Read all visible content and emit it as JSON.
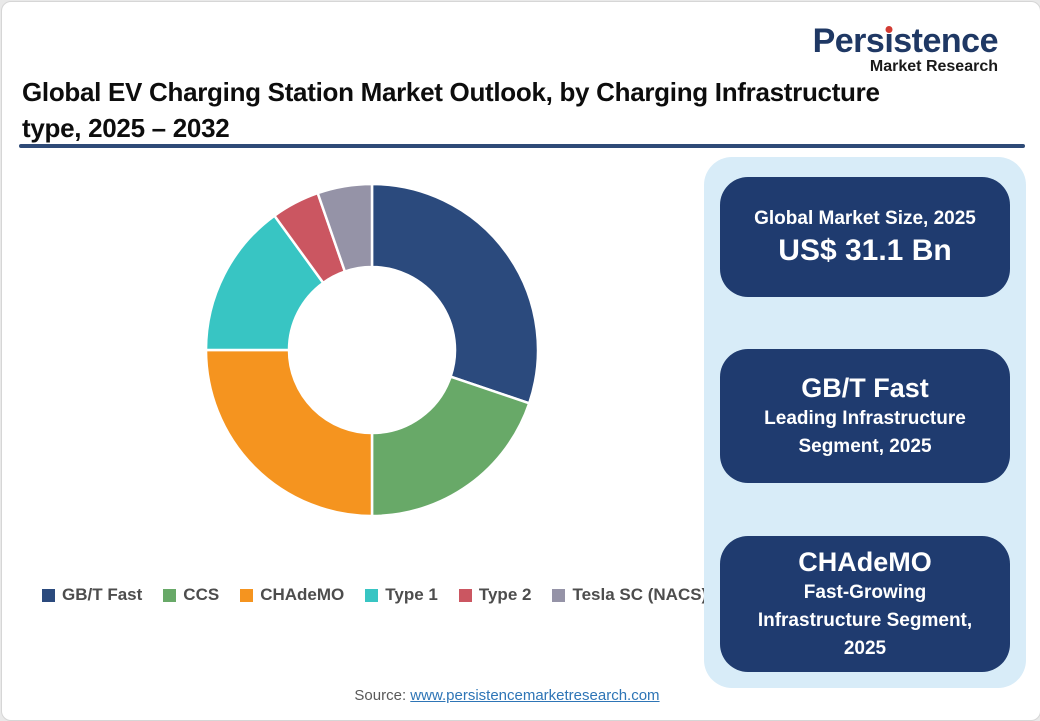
{
  "logo": {
    "brand": "Persistence",
    "brand_pre": "Pers",
    "brand_i": "ı",
    "brand_post": "stence",
    "tagline": "Market Research",
    "brand_color": "#1F3864",
    "dot_color": "#D23B33"
  },
  "title": {
    "line1": "Global EV Charging Station Market Outlook, by Charging Infrastructure",
    "line2": "type, 2025 – 2032"
  },
  "chart_data": {
    "type": "pie",
    "subtype": "donut",
    "title": "Global EV Charging Station Market Outlook, by Charging Infrastructure type, 2025 – 2032",
    "categories": [
      "GB/T Fast",
      "CCS",
      "CHAdeMO",
      "Type 1",
      "Type 2",
      "Tesla SC (NACS)"
    ],
    "values": [
      30.2,
      19.8,
      25.0,
      15.0,
      4.7,
      5.3
    ],
    "values_note": "percent share estimated from arc angles",
    "colors": [
      "#2B4A7D",
      "#68A968",
      "#F5941F",
      "#38C5C3",
      "#CB5661",
      "#9593A7"
    ],
    "start_angle_deg": 0,
    "direction": "clockwise",
    "inner_radius_ratio": 0.5,
    "separator_color": "#FFFFFF",
    "legend_position": "bottom"
  },
  "sidebar": {
    "background": "#D8ECF8",
    "box_background": "#1F3B6F",
    "market_size_box": {
      "label": "Global Market Size, 2025",
      "value": "US$ 31.1 Bn"
    },
    "segment_boxes": [
      {
        "name": "GB/T Fast",
        "caption": "Leading Infrastructure Segment, 2025"
      },
      {
        "name": "CHAdeMO",
        "caption": "Fast-Growing Infrastructure Segment, 2025"
      }
    ]
  },
  "footer": {
    "source_label": "Source:",
    "source_link": "www.persistencemarketresearch.com"
  }
}
